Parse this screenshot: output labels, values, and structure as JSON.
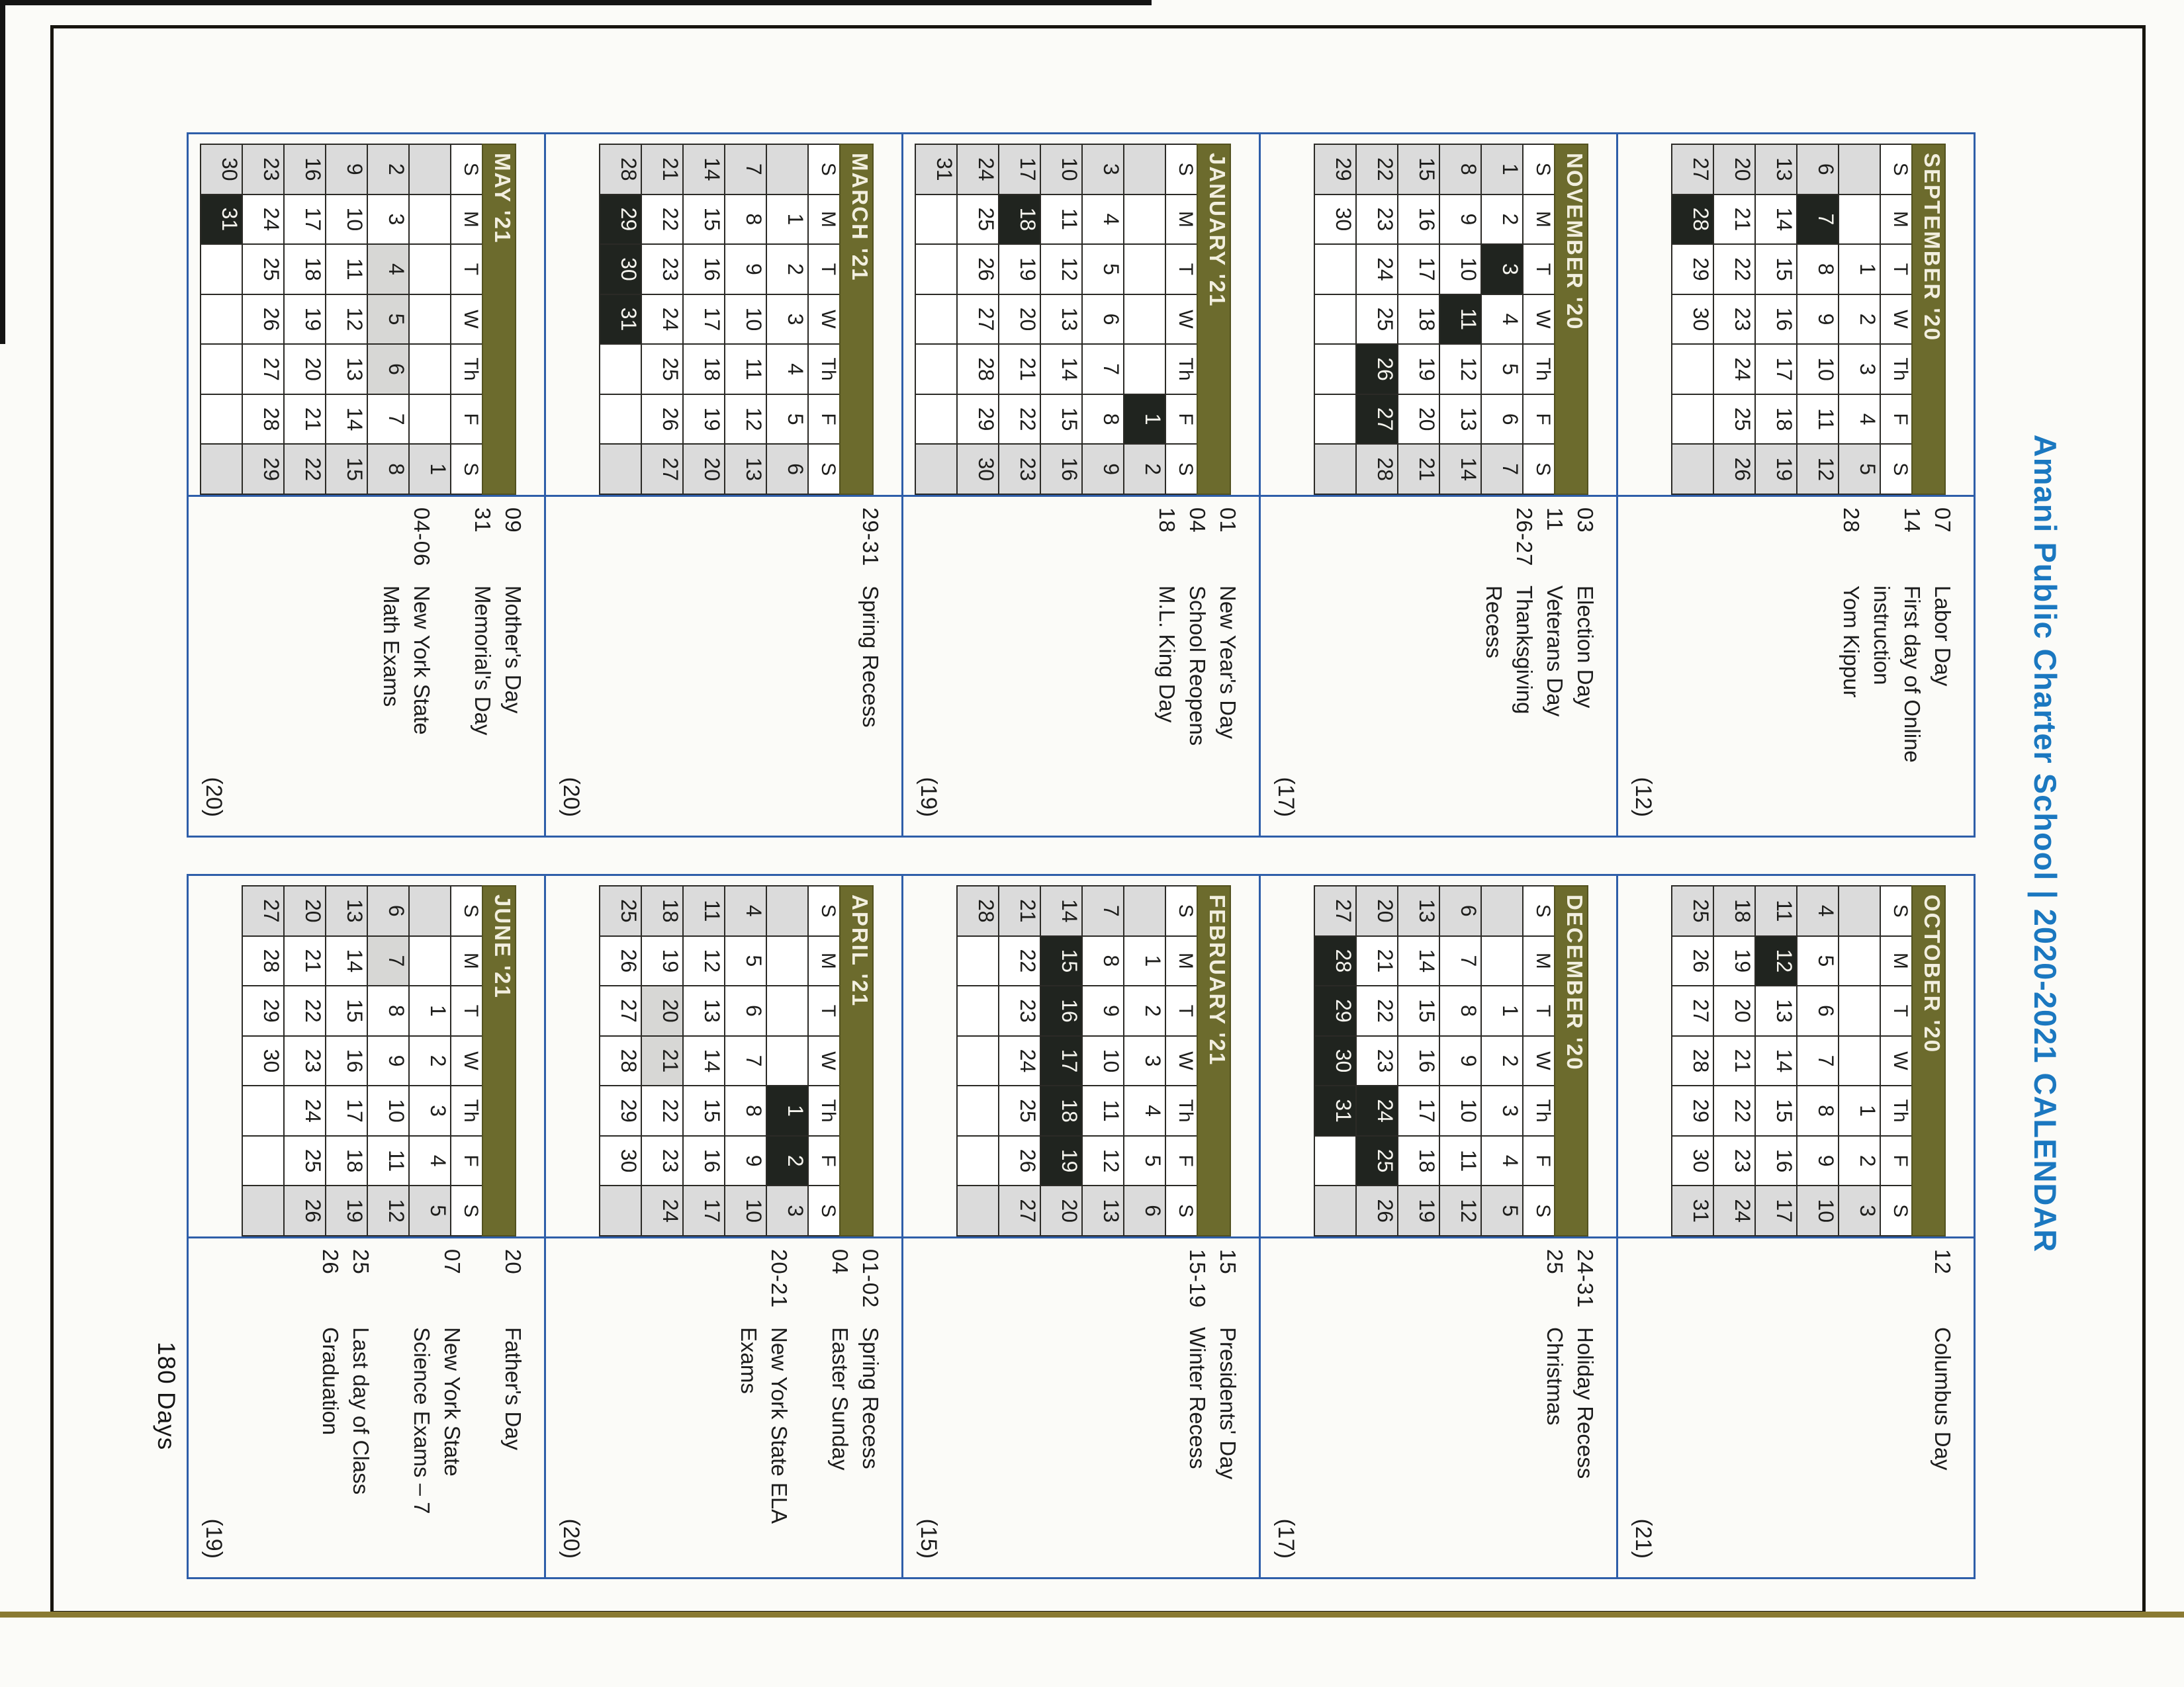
{
  "title": "Amani Public Charter School | 2020-2021 CALENDAR",
  "footer": "180 Days",
  "dow": [
    "S",
    "M",
    "T",
    "W",
    "Th",
    "F",
    "S"
  ],
  "colors": {
    "title_blue": "#1b78c0",
    "grid_border_blue": "#2e5ea9",
    "banner_olive": "#6c6b2d",
    "holiday_black": "#20241f",
    "weekend_gray": "#dbdbdb",
    "exam_gray": "#d7d7d5"
  },
  "columns": [
    [
      {
        "name": "SEPTEMBER '20",
        "first_dow": 2,
        "days": 30,
        "black_days": [
          7,
          28
        ],
        "gray_days": [],
        "events": [
          {
            "date": "07",
            "label": "Labor Day"
          },
          {
            "date": "14",
            "label": "First day of Online instruction"
          },
          {
            "date": "28",
            "label": "Yom Kippur"
          }
        ],
        "count": "(12)"
      },
      {
        "name": "NOVEMBER '20",
        "first_dow": 0,
        "days": 30,
        "black_days": [
          3,
          11,
          26,
          27
        ],
        "gray_days": [],
        "events": [
          {
            "date": "03",
            "label": "Election Day"
          },
          {
            "date": "11",
            "label": "Veterans Day"
          },
          {
            "date": "26-27",
            "label": "Thanksgiving Recess"
          }
        ],
        "count": "(17)"
      },
      {
        "name": "JANUARY '21",
        "first_dow": 5,
        "days": 31,
        "black_days": [
          1,
          18
        ],
        "gray_days": [],
        "events": [
          {
            "date": "01",
            "label": "New Year's Day"
          },
          {
            "date": "04",
            "label": "School Reopens"
          },
          {
            "date": "18",
            "label": "M.L. King Day"
          }
        ],
        "count": "(19)"
      },
      {
        "name": "MARCH '21",
        "first_dow": 1,
        "days": 31,
        "black_days": [
          29,
          30,
          31
        ],
        "gray_days": [],
        "events": [
          {
            "date": "29-31",
            "label": "Spring Recess"
          }
        ],
        "count": "(20)"
      },
      {
        "name": "MAY '21",
        "first_dow": 6,
        "days": 31,
        "black_days": [
          31
        ],
        "gray_days": [
          4,
          5,
          6
        ],
        "events": [
          {
            "date": "09",
            "label": "Mother's Day"
          },
          {
            "date": "31",
            "label": "Memorial's Day"
          },
          {
            "date": "04-06",
            "label": "New York State Math Exams",
            "gap": true
          }
        ],
        "count": "(20)"
      }
    ],
    [
      {
        "name": "OCTOBER '20",
        "first_dow": 4,
        "days": 31,
        "black_days": [
          12
        ],
        "gray_days": [],
        "events": [
          {
            "date": "12",
            "label": "Columbus Day"
          }
        ],
        "count": "(21)"
      },
      {
        "name": "DECEMBER '20",
        "first_dow": 2,
        "days": 31,
        "black_days": [
          24,
          25,
          28,
          29,
          30,
          31
        ],
        "gray_days": [],
        "events": [
          {
            "date": "24-31",
            "label": "Holiday Recess"
          },
          {
            "date": "25",
            "label": "Christmas"
          }
        ],
        "count": "(17)"
      },
      {
        "name": "FEBRUARY '21",
        "first_dow": 1,
        "days": 28,
        "black_days": [
          15,
          16,
          17,
          18,
          19
        ],
        "gray_days": [],
        "events": [
          {
            "date": "15",
            "label": "Presidents' Day"
          },
          {
            "date": "15-19",
            "label": "Winter Recess"
          }
        ],
        "count": "(15)"
      },
      {
        "name": "APRIL '21",
        "first_dow": 4,
        "days": 30,
        "black_days": [
          1,
          2
        ],
        "gray_days": [
          20,
          21
        ],
        "events": [
          {
            "date": "01-02",
            "label": "Spring Recess"
          },
          {
            "date": "04",
            "label": "Easter Sunday"
          },
          {
            "date": "20-21",
            "label": "New York State ELA Exams",
            "gap": true
          }
        ],
        "count": "(20)"
      },
      {
        "name": "JUNE '21",
        "first_dow": 2,
        "days": 30,
        "black_days": [],
        "gray_days": [
          7
        ],
        "events": [
          {
            "date": "20",
            "label": "Father's Day"
          },
          {
            "date": "07",
            "label": "New York State Science Exams – 7",
            "gap": true
          },
          {
            "date": "25",
            "label": "Last day of Class",
            "gap": true
          },
          {
            "date": "26",
            "label": "Graduation"
          }
        ],
        "count": "(19)"
      }
    ]
  ]
}
